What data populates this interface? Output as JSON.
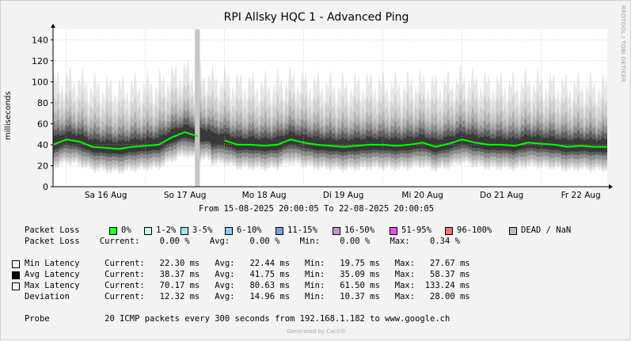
{
  "chart_data": {
    "type": "area",
    "title": "RPI Allsky HQC 1 - Advanced Ping",
    "ylabel": "milliseconds",
    "ylim": [
      0,
      150
    ],
    "yticks": [
      0,
      20,
      40,
      60,
      80,
      100,
      120,
      140
    ],
    "xlim": [
      "2025-08-15 20:00",
      "2025-08-22 20:00"
    ],
    "x_tick_labels": [
      "Sa 16 Aug",
      "So 17 Aug",
      "Mo 18 Aug",
      "Di 19 Aug",
      "Mi 20 Aug",
      "Do 21 Aug",
      "Fr 22 Aug"
    ],
    "x_tick_positions": [
      "2025-08-16 12:00",
      "2025-08-17 12:00",
      "2025-08-18 12:00",
      "2025-08-19 12:00",
      "2025-08-20 12:00",
      "2025-08-21 12:00",
      "2025-08-22 12:00"
    ],
    "grid": true,
    "series": [
      {
        "name": "Avg Latency",
        "color": "#00ff00",
        "x": [
          "2025-08-15 20:00",
          "2025-08-16 00:00",
          "2025-08-16 04:00",
          "2025-08-16 08:00",
          "2025-08-16 12:00",
          "2025-08-16 16:00",
          "2025-08-16 20:00",
          "2025-08-17 00:00",
          "2025-08-17 04:00",
          "2025-08-17 08:00",
          "2025-08-17 12:00",
          "2025-08-17 16:00",
          "2025-08-17 20:00",
          "2025-08-18 00:00",
          "2025-08-18 04:00",
          "2025-08-18 08:00",
          "2025-08-18 12:00",
          "2025-08-18 16:00",
          "2025-08-18 20:00",
          "2025-08-19 00:00",
          "2025-08-19 04:00",
          "2025-08-19 08:00",
          "2025-08-19 12:00",
          "2025-08-19 16:00",
          "2025-08-19 20:00",
          "2025-08-20 00:00",
          "2025-08-20 04:00",
          "2025-08-20 08:00",
          "2025-08-20 12:00",
          "2025-08-20 16:00",
          "2025-08-20 20:00",
          "2025-08-21 00:00",
          "2025-08-21 04:00",
          "2025-08-21 08:00",
          "2025-08-21 12:00",
          "2025-08-21 16:00",
          "2025-08-21 20:00",
          "2025-08-22 00:00",
          "2025-08-22 04:00",
          "2025-08-22 08:00",
          "2025-08-22 12:00",
          "2025-08-22 16:00",
          "2025-08-22 20:00"
        ],
        "y": [
          40,
          45,
          43,
          38,
          37,
          36,
          38,
          39,
          40,
          47,
          52,
          48,
          null,
          44,
          40,
          40,
          39,
          40,
          45,
          42,
          40,
          39,
          38,
          39,
          40,
          40,
          39,
          40,
          42,
          38,
          41,
          45,
          42,
          40,
          40,
          39,
          42,
          41,
          40,
          38,
          39,
          38,
          38
        ]
      },
      {
        "name": "Min Latency",
        "color": "#ffffff",
        "y_summary": {
          "current": 22.3,
          "avg": 22.44,
          "min": 19.75,
          "max": 27.67
        }
      },
      {
        "name": "Max Latency",
        "color": "#ffffff",
        "y_summary": {
          "current": 70.17,
          "avg": 80.63,
          "min": 61.5,
          "max": 133.24
        }
      },
      {
        "name": "Packet Loss",
        "color": "#cccccc",
        "note": "DEAD / NaN gap",
        "gap_x": [
          "2025-08-17 15:00",
          "2025-08-17 16:30"
        ]
      }
    ]
  },
  "legend": {
    "packet_loss_label": "Packet Loss",
    "loss_classes": [
      {
        "label": "0%",
        "color": "#26ff26"
      },
      {
        "label": "1-2%",
        "color": "#c8f7f3"
      },
      {
        "label": "3-5%",
        "color": "#a8e6ea"
      },
      {
        "label": "6-10%",
        "color": "#8ec9f0"
      },
      {
        "label": "11-15%",
        "color": "#7f9ee6"
      },
      {
        "label": "16-50%",
        "color": "#c299c9"
      },
      {
        "label": "51-95%",
        "color": "#f04aee"
      },
      {
        "label": "96-100%",
        "color": "#f07474"
      },
      {
        "label": "DEAD / NaN",
        "color": "#b7bfb7"
      }
    ],
    "loss_stats": "Packet Loss    Current:    0.00 %    Avg:    0.00 %    Min:    0.00 %    Max:    0.34 %",
    "rows": [
      {
        "label": "Min Latency",
        "swatch": "#ffffff",
        "text": "Min Latency     Current:   22.30 ms   Avg:   22.44 ms   Min:   19.75 ms   Max:   27.67 ms"
      },
      {
        "label": "Avg Latency",
        "swatch": "#000000",
        "text": "Avg Latency     Current:   38.37 ms   Avg:   41.75 ms   Min:   35.09 ms   Max:   58.37 ms"
      },
      {
        "label": "Max Latency",
        "swatch": "#ffffff",
        "text": "Max Latency     Current:   70.17 ms   Avg:   80.63 ms   Min:   61.50 ms   Max:  133.24 ms"
      },
      {
        "label": "Deviation",
        "swatch": null,
        "text": "Deviation       Current:   12.32 ms   Avg:   14.96 ms   Min:   10.37 ms   Max:   28.00 ms"
      }
    ],
    "probe": "Probe           20 ICMP packets every 300 seconds from 192.168.1.182 to www.google.ch"
  },
  "header": {
    "title": "RPI Allsky HQC 1 - Advanced Ping",
    "watermark": "RRDTOOL / TOBI OETIKER"
  },
  "date_range": "From 15-08-2025 20:00:05 To 22-08-2025 20:00:05",
  "footer": "Generated by Cacti®"
}
